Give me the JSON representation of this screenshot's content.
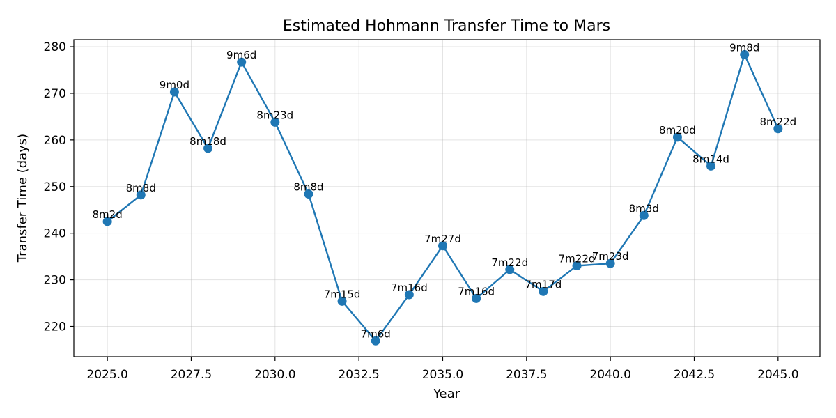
{
  "chart_data": {
    "type": "line",
    "title": "Estimated Hohmann Transfer Time to Mars",
    "xlabel": "Year",
    "ylabel": "Transfer Time (days)",
    "xlim": [
      2024.0,
      2046.25
    ],
    "ylim": [
      213.5,
      281.5
    ],
    "x_ticks": [
      2025.0,
      2027.5,
      2030.0,
      2032.5,
      2035.0,
      2037.5,
      2040.0,
      2042.5,
      2045.0
    ],
    "x_tick_labels": [
      "2025.0",
      "2027.5",
      "2030.0",
      "2032.5",
      "2035.0",
      "2037.5",
      "2040.0",
      "2042.5",
      "2045.0"
    ],
    "y_ticks": [
      220,
      230,
      240,
      250,
      260,
      270,
      280
    ],
    "y_tick_labels": [
      "220",
      "230",
      "240",
      "250",
      "260",
      "270",
      "280"
    ],
    "grid": true,
    "color": "#1f77b4",
    "series": [
      {
        "x": [
          2025,
          2026,
          2027,
          2028,
          2029,
          2030,
          2031,
          2032,
          2033,
          2034,
          2035,
          2036,
          2037,
          2038,
          2039,
          2040,
          2041,
          2042,
          2043,
          2044,
          2045
        ],
        "values": [
          242.5,
          248.2,
          270.3,
          258.2,
          276.7,
          263.8,
          248.4,
          225.4,
          216.9,
          226.8,
          237.3,
          226.0,
          232.2,
          227.5,
          233.0,
          233.5,
          243.8,
          260.6,
          254.4,
          278.3,
          262.4
        ],
        "labels": [
          "8m2d",
          "8m8d",
          "9m0d",
          "8m18d",
          "9m6d",
          "8m23d",
          "8m8d",
          "7m15d",
          "7m6d",
          "7m16d",
          "7m27d",
          "7m16d",
          "7m22d",
          "7m17d",
          "7m22d",
          "7m23d",
          "8m3d",
          "8m20d",
          "8m14d",
          "9m8d",
          "8m22d"
        ]
      }
    ]
  }
}
